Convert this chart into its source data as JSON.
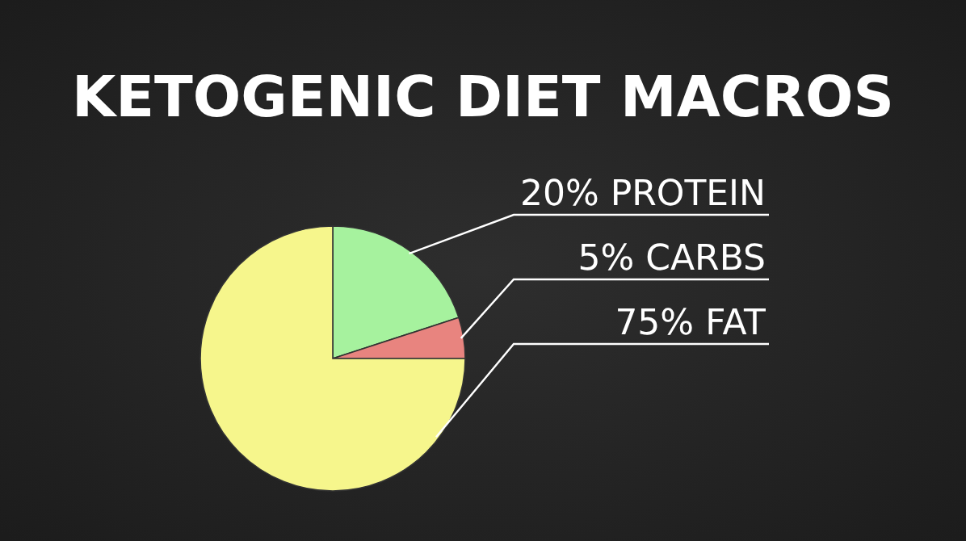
{
  "chart_data": {
    "type": "pie",
    "title": "KETOGENIC DIET MACROS",
    "categories": [
      "PROTEIN",
      "CARBS",
      "FAT"
    ],
    "values": [
      20,
      5,
      75
    ],
    "value_labels": [
      "20%",
      "5%",
      "75%"
    ],
    "colors": [
      "#a6f29e",
      "#e8847f",
      "#f6f68c"
    ]
  }
}
